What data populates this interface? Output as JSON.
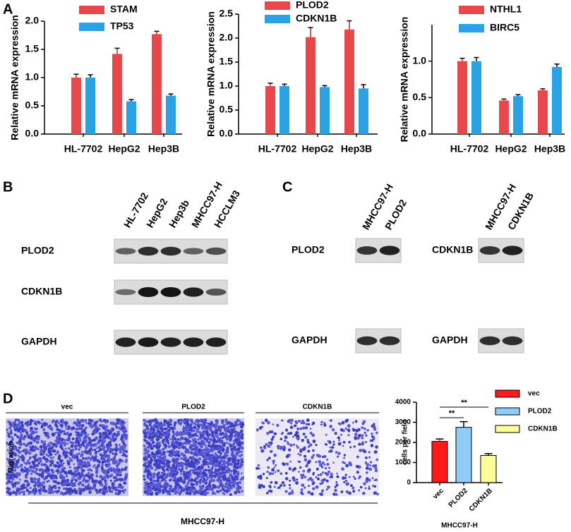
{
  "panel_labels": [
    "A",
    "B",
    "C",
    "D"
  ],
  "chart_data": [
    {
      "type": "bar",
      "y_label": "Relative mRNA expression",
      "categories": [
        "HL-7702",
        "HepG2",
        "Hep3B"
      ],
      "series": [
        {
          "name": "STAM",
          "color": "#e8474c",
          "values": [
            1.0,
            1.42,
            1.77
          ],
          "errors": [
            0.06,
            0.1,
            0.05
          ]
        },
        {
          "name": "TP53",
          "color": "#2aa2e6",
          "values": [
            1.0,
            0.58,
            0.68
          ],
          "errors": [
            0.05,
            0.03,
            0.03
          ]
        }
      ],
      "ylim": [
        0,
        2.0
      ],
      "yticks": [
        {
          "value": 0,
          "label": "0.0"
        },
        0.5,
        {
          "value": 1,
          "label": "1.0"
        },
        1.5,
        {
          "value": 2,
          "label": "2.0"
        }
      ]
    },
    {
      "type": "bar",
      "y_label": "Relative mRNA expression",
      "categories": [
        "HL-7702",
        "HepG2",
        "Hep3B"
      ],
      "series": [
        {
          "name": "PLOD2",
          "color": "#e8474c",
          "values": [
            1.0,
            2.02,
            2.18
          ],
          "errors": [
            0.06,
            0.2,
            0.18
          ]
        },
        {
          "name": "CDKN1B",
          "color": "#2aa2e6",
          "values": [
            1.0,
            0.98,
            0.95
          ],
          "errors": [
            0.04,
            0.03,
            0.08
          ]
        }
      ],
      "ylim": [
        0,
        2.5
      ],
      "yticks": [
        {
          "value": 0,
          "label": "0.0"
        },
        0.5,
        {
          "value": 1,
          "label": "1.0"
        },
        1.5,
        {
          "value": 2,
          "label": "2.0"
        },
        2.5
      ]
    },
    {
      "type": "bar",
      "y_label": "Relative mRNA expression",
      "categories": [
        "HL-7702",
        "HepG2",
        "Hep3B"
      ],
      "series": [
        {
          "name": "NTHL1",
          "color": "#e8474c",
          "values": [
            1.0,
            0.46,
            0.6
          ],
          "errors": [
            0.04,
            0.02,
            0.02
          ]
        },
        {
          "name": "BIRC5",
          "color": "#2aa2e6",
          "values": [
            1.0,
            0.52,
            0.92
          ],
          "errors": [
            0.05,
            0.02,
            0.04
          ]
        }
      ],
      "ylim": [
        0,
        1.5
      ],
      "yticks": [
        {
          "value": 0,
          "label": "0.0"
        },
        0.5,
        {
          "value": 1,
          "label": "1.0"
        }
      ]
    },
    {
      "type": "bar",
      "y_label": "cells per field",
      "x_label": "MHCC97-H",
      "categories": [
        "vec",
        "PLOD2",
        "CDKN1B"
      ],
      "values": [
        2050,
        2750,
        1350
      ],
      "errors": [
        120,
        280,
        90
      ],
      "colors": [
        "#ff1a1a",
        "#8fcdf8",
        "#fdfd9a"
      ],
      "ylim": [
        0,
        4000
      ],
      "yticks": [
        0,
        1000,
        2000,
        3000,
        4000
      ],
      "annotations": [
        "**",
        "**"
      ]
    }
  ],
  "blot_B": {
    "columns": [
      "HL-7702",
      "HepG2",
      "Hep3b",
      "MHCC97-H",
      "HCCLM3"
    ],
    "rows": [
      "PLOD2",
      "CDKN1B",
      "GAPDH"
    ]
  },
  "blot_C": {
    "left": {
      "columns": [
        "MHCC97-H",
        "PLOD2"
      ],
      "rows": [
        "PLOD2",
        "GAPDH"
      ]
    },
    "right": {
      "columns": [
        "MHCC97-H",
        "CDKN1B"
      ],
      "rows": [
        "CDKN1B",
        "GAPDH"
      ]
    }
  },
  "migration": {
    "columns": [
      "vec",
      "PLOD2",
      "CDKN1B"
    ],
    "row_label": "Migration",
    "cell_line": "MHCC97-H"
  }
}
